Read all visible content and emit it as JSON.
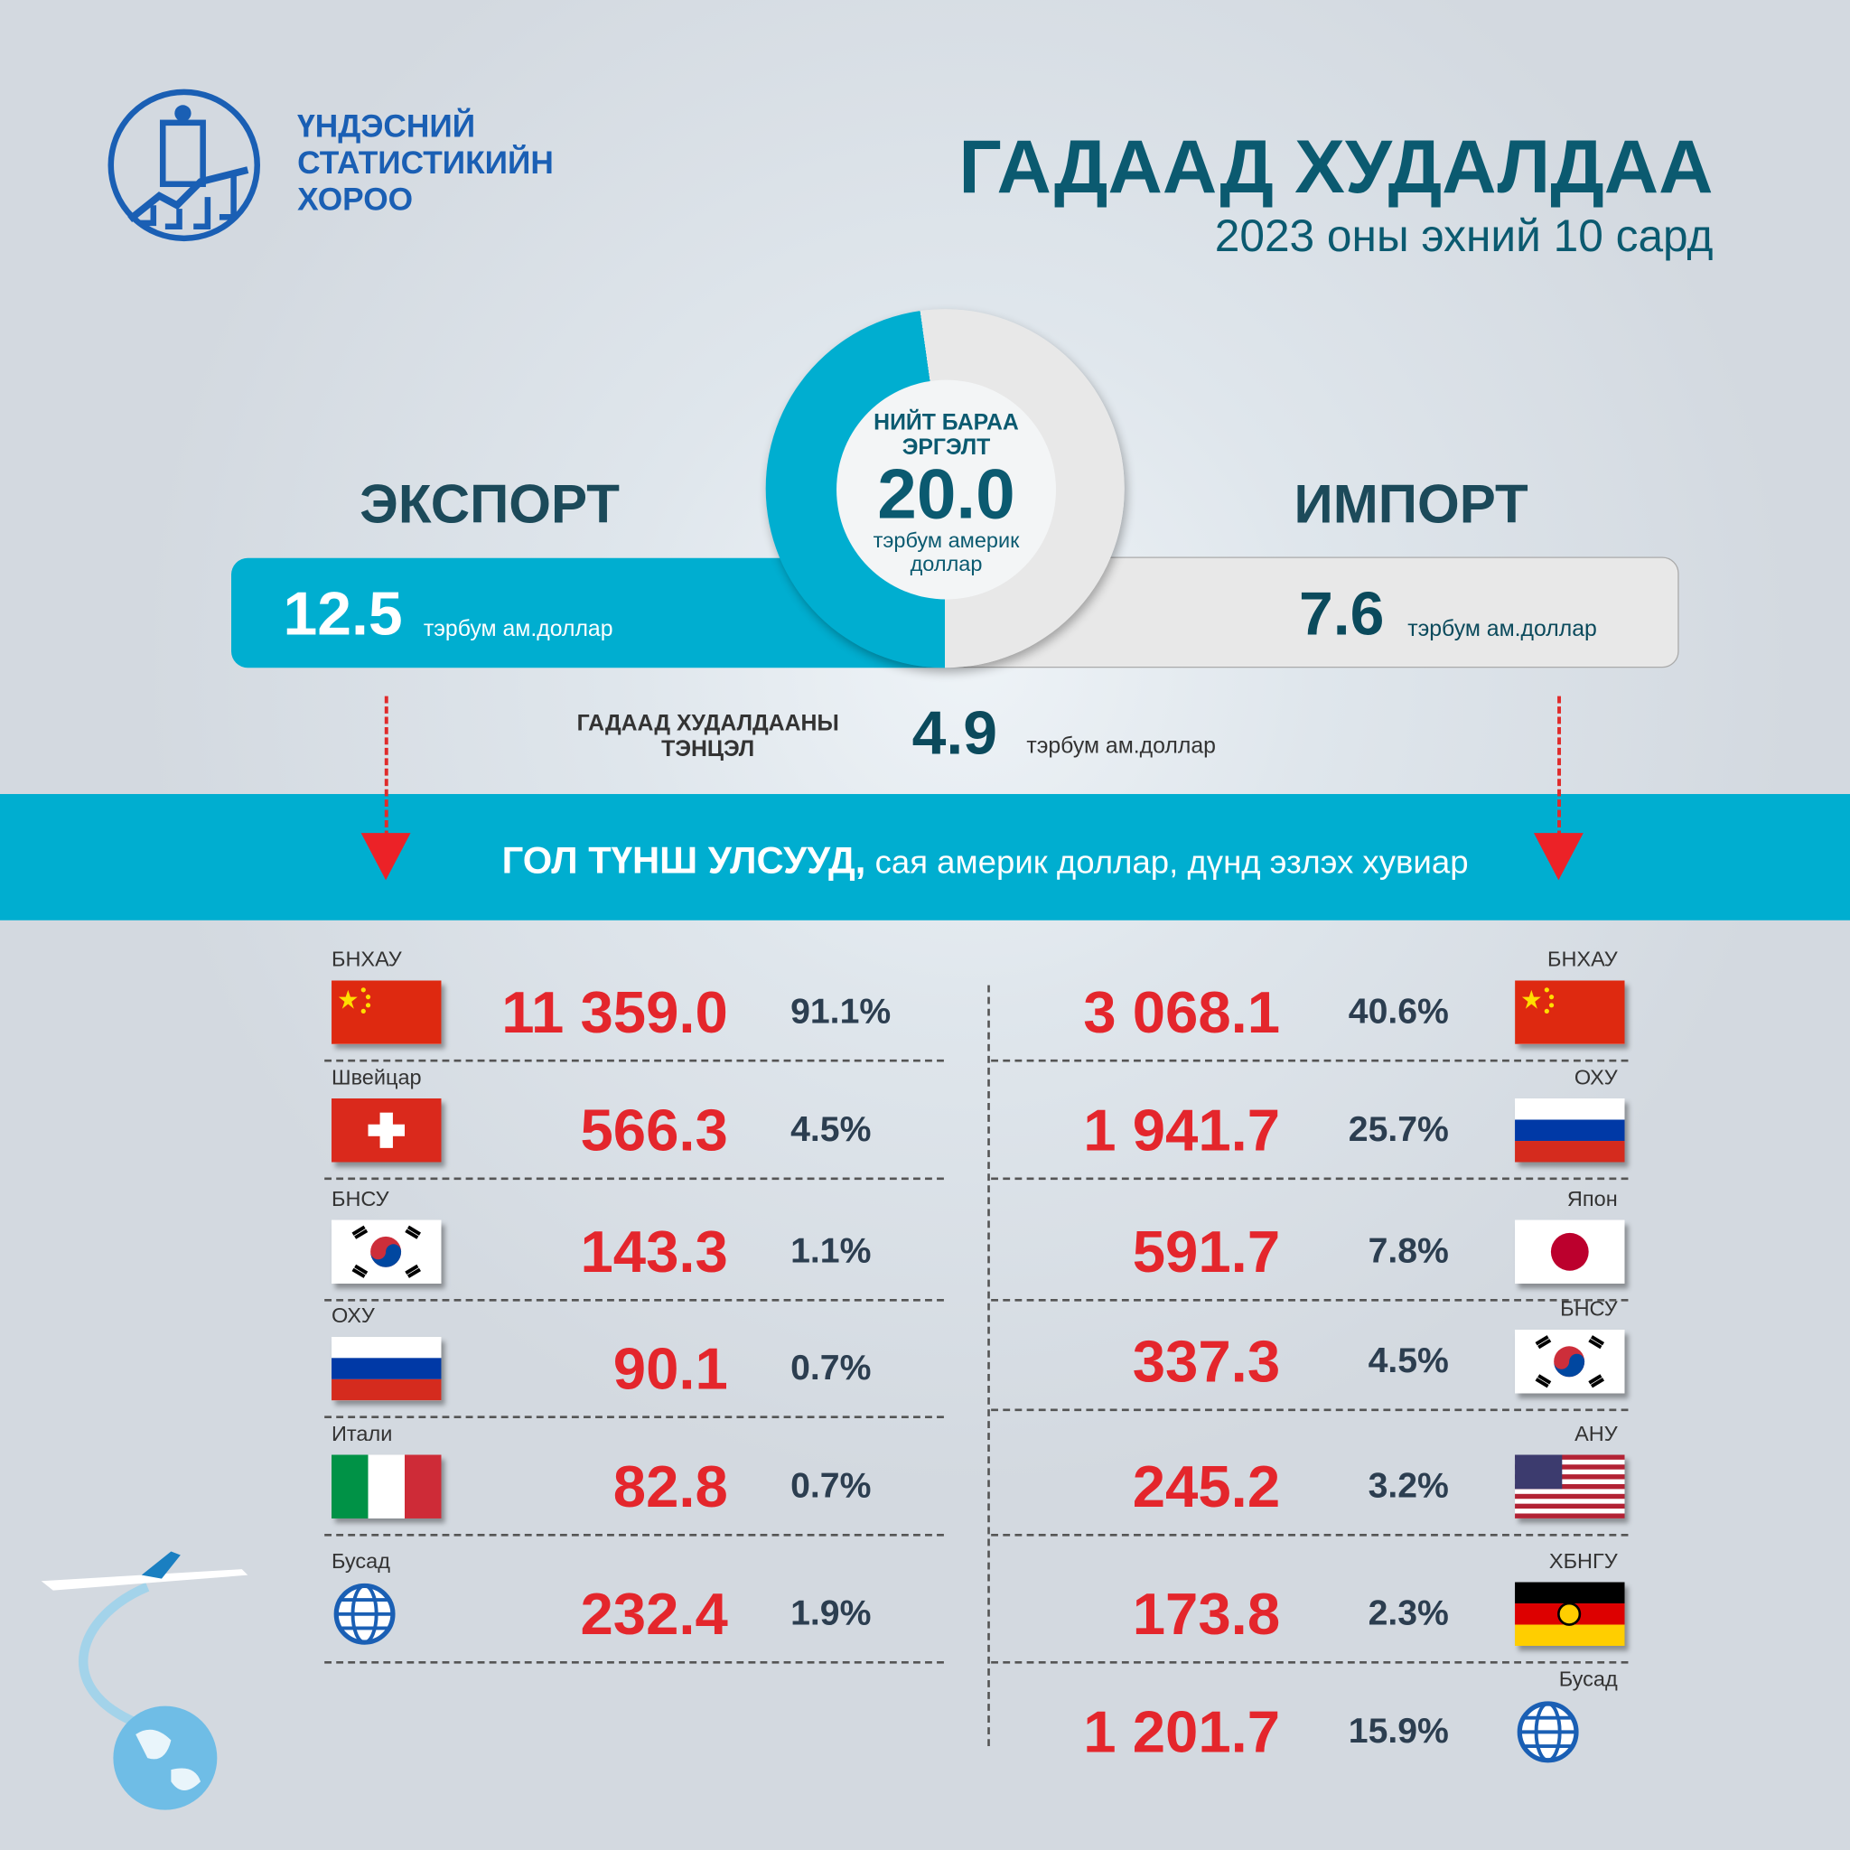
{
  "logo": {
    "lines": [
      "ҮНДЭСНИЙ",
      "СТАТИСТИКИЙН",
      "ХОРОО"
    ]
  },
  "header": {
    "title": "ГАДААД ХУДАЛДАА",
    "subtitle": "2023 оны эхний 10 сард"
  },
  "total": {
    "label1": "НИЙТ БАРАА",
    "label2": "ЭРГЭЛТ",
    "value": "20.0",
    "unit1": "тэрбум америк",
    "unit2": "доллар"
  },
  "export": {
    "heading": "ЭКСПОРТ",
    "value": "12.5",
    "unit": "тэрбум ам.доллар"
  },
  "import": {
    "heading": "ИМПОРТ",
    "value": "7.6",
    "unit": "тэрбум ам.доллар"
  },
  "balance": {
    "label1": "ГАДААД ХУДАЛДААНЫ",
    "label2": "ТЭНЦЭЛ",
    "value": "4.9",
    "unit": "тэрбум ам.доллар"
  },
  "band": {
    "bold": "ГОЛ ТҮНШ УЛСУУД,",
    "rest": " сая америк доллар, дүнд эзлэх хувиар"
  },
  "colors": {
    "accent": "#00aed0",
    "value_red": "#e4262c",
    "title": "#0b5a70"
  },
  "export_partners": [
    {
      "country": "БНХАУ",
      "flag": "china",
      "value": "11 359.0",
      "share": "91.1%"
    },
    {
      "country": "Швейцар",
      "flag": "switzerland",
      "value": "566.3",
      "share": "4.5%"
    },
    {
      "country": "БНСУ",
      "flag": "korea",
      "value": "143.3",
      "share": "1.1%"
    },
    {
      "country": "ОХУ",
      "flag": "russia",
      "value": "90.1",
      "share": "0.7%"
    },
    {
      "country": "Итали",
      "flag": "italy",
      "value": "82.8",
      "share": "0.7%"
    },
    {
      "country": "Бусад",
      "flag": "globe",
      "value": "232.4",
      "share": "1.9%"
    }
  ],
  "import_partners": [
    {
      "country": "БНХАУ",
      "flag": "china",
      "value": "3 068.1",
      "share": "40.6%"
    },
    {
      "country": "ОХУ",
      "flag": "russia",
      "value": "1 941.7",
      "share": "25.7%"
    },
    {
      "country": "Япон",
      "flag": "japan",
      "value": "591.7",
      "share": "7.8%"
    },
    {
      "country": "БНСУ",
      "flag": "korea",
      "value": "337.3",
      "share": "4.5%"
    },
    {
      "country": "АНУ",
      "flag": "usa",
      "value": "245.2",
      "share": "3.2%"
    },
    {
      "country": "ХБНГУ",
      "flag": "germany",
      "value": "173.8",
      "share": "2.3%"
    },
    {
      "country": "Бусад",
      "flag": "globe",
      "value": "1 201.7",
      "share": "15.9%"
    }
  ]
}
